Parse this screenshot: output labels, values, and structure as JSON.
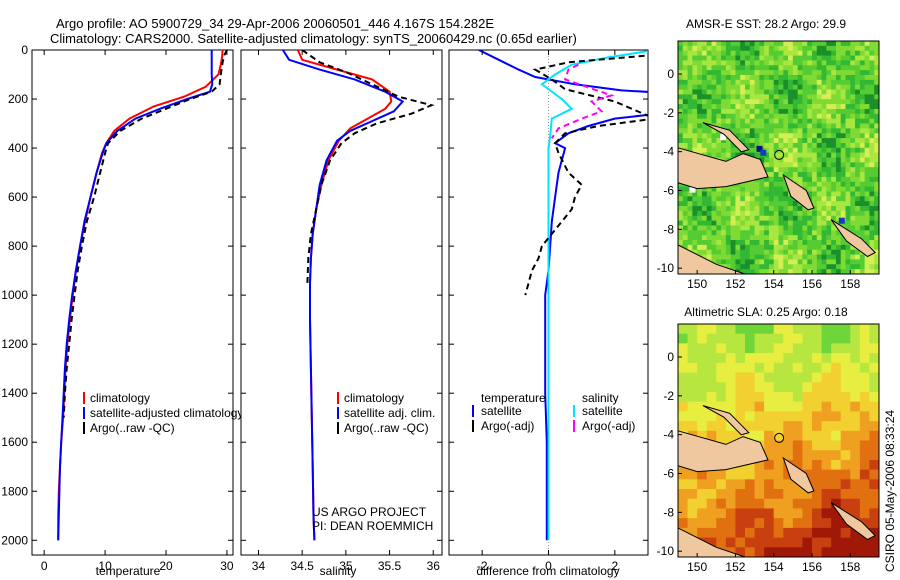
{
  "header": {
    "line1": "Argo profile: AO 5900729_34 29-Apr-2006 20060501_446 4.167S 154.282E",
    "line2": "Climatology: CARS2000. Satellite-adjusted climatology: synTS_20060429.nc (0.65d earlier)"
  },
  "footer": {
    "project": "US ARGO PROJECT",
    "pi": "PI: DEAN ROEMMICH",
    "stamp": "CSIRO 05-May-2006 08:33:24"
  },
  "colors": {
    "climatology": "#ff0000",
    "satellite": "#0000ff",
    "argo": "#000000",
    "sal_satellite": "#00e5ff",
    "sal_argo": "#ff00ff",
    "land": "#f0c8a0"
  },
  "chart_data": [
    {
      "id": "temperature",
      "type": "line",
      "xlabel": "temperature",
      "xlim": [
        -2,
        31
      ],
      "ylim": [
        0,
        2060
      ],
      "xticks": [
        0,
        10,
        20,
        30
      ],
      "yticks": [
        0,
        200,
        400,
        600,
        800,
        1000,
        1200,
        1400,
        1600,
        1800,
        2000
      ],
      "legend": [
        "climatology",
        "satellite-adjusted climatology",
        "Argo(..raw -QC)"
      ],
      "series": [
        {
          "name": "climatology",
          "color": "#ff0000",
          "dash": "",
          "points": [
            [
              29.3,
              0
            ],
            [
              29.2,
              30
            ],
            [
              29.0,
              60
            ],
            [
              28.6,
              100
            ],
            [
              26.5,
              150
            ],
            [
              23,
              190
            ],
            [
              18,
              230
            ],
            [
              14,
              280
            ],
            [
              11.5,
              330
            ],
            [
              10.2,
              380
            ],
            [
              9.5,
              420
            ],
            [
              8.6,
              500
            ],
            [
              7.6,
              600
            ],
            [
              6.7,
              700
            ],
            [
              5.9,
              800
            ],
            [
              5.2,
              900
            ],
            [
              4.7,
              1000
            ],
            [
              4.2,
              1100
            ],
            [
              3.8,
              1200
            ],
            [
              3.5,
              1300
            ],
            [
              3.3,
              1400
            ],
            [
              3.1,
              1500
            ],
            [
              2.8,
              1600
            ],
            [
              2.6,
              1700
            ],
            [
              2.4,
              1800
            ],
            [
              2.3,
              1900
            ],
            [
              2.3,
              2000
            ]
          ]
        },
        {
          "name": "satellite-adjusted climatology",
          "color": "#0000ff",
          "dash": "",
          "points": [
            [
              27.5,
              0
            ],
            [
              27.5,
              40
            ],
            [
              27.5,
              100
            ],
            [
              27.6,
              140
            ],
            [
              27.2,
              170
            ],
            [
              23.5,
              200
            ],
            [
              19,
              240
            ],
            [
              15,
              280
            ],
            [
              12,
              330
            ],
            [
              10.2,
              380
            ],
            [
              9.6,
              420
            ],
            [
              8.6,
              500
            ],
            [
              7.6,
              600
            ],
            [
              6.6,
              700
            ],
            [
              5.9,
              800
            ],
            [
              5.2,
              900
            ],
            [
              4.6,
              1000
            ],
            [
              4.1,
              1100
            ],
            [
              3.7,
              1200
            ],
            [
              3.4,
              1300
            ],
            [
              3.2,
              1400
            ],
            [
              3.0,
              1500
            ],
            [
              2.8,
              1600
            ],
            [
              2.6,
              1700
            ],
            [
              2.5,
              1800
            ],
            [
              2.4,
              1900
            ],
            [
              2.3,
              2000
            ]
          ]
        },
        {
          "name": "Argo(..raw -QC)",
          "color": "#000000",
          "dash": "6,4",
          "points": [
            [
              30.0,
              0
            ],
            [
              29.6,
              20
            ],
            [
              29.3,
              50
            ],
            [
              29.0,
              100
            ],
            [
              28.8,
              140
            ],
            [
              27.5,
              170
            ],
            [
              24,
              200
            ],
            [
              20,
              240
            ],
            [
              16,
              280
            ],
            [
              12.5,
              330
            ],
            [
              10.5,
              380
            ],
            [
              10,
              420
            ],
            [
              9.2,
              500
            ],
            [
              8.2,
              600
            ],
            [
              7.0,
              700
            ],
            [
              6.2,
              800
            ],
            [
              5.5,
              900
            ],
            [
              5.0,
              1000
            ],
            [
              4.5,
              1100
            ],
            [
              4.1,
              1200
            ],
            [
              3.7,
              1300
            ],
            [
              3.4,
              1400
            ],
            [
              3.2,
              1500
            ]
          ]
        }
      ]
    },
    {
      "id": "salinity",
      "type": "line",
      "xlabel": "salinity",
      "xlim": [
        33.8,
        36.1
      ],
      "ylim": [
        0,
        2060
      ],
      "xticks": [
        34,
        34.5,
        35,
        35.5,
        36
      ],
      "legend": [
        "climatology",
        "satellite adj. clim.",
        "Argo(..raw -QC)"
      ],
      "series": [
        {
          "name": "climatology",
          "color": "#ff0000",
          "dash": "",
          "points": [
            [
              34.45,
              0
            ],
            [
              34.5,
              40
            ],
            [
              34.9,
              80
            ],
            [
              35.3,
              120
            ],
            [
              35.5,
              170
            ],
            [
              35.52,
              210
            ],
            [
              35.45,
              240
            ],
            [
              35.25,
              280
            ],
            [
              35.05,
              320
            ],
            [
              34.92,
              370
            ],
            [
              34.8,
              450
            ],
            [
              34.72,
              550
            ],
            [
              34.66,
              650
            ],
            [
              34.62,
              750
            ],
            [
              34.6,
              850
            ],
            [
              34.59,
              950
            ],
            [
              34.59,
              1100
            ],
            [
              34.6,
              1300
            ],
            [
              34.61,
              1500
            ],
            [
              34.62,
              1700
            ],
            [
              34.63,
              1900
            ],
            [
              34.64,
              2000
            ]
          ]
        },
        {
          "name": "satellite adj. clim.",
          "color": "#0000ff",
          "dash": "",
          "points": [
            [
              34.28,
              0
            ],
            [
              34.35,
              40
            ],
            [
              34.7,
              80
            ],
            [
              35.1,
              120
            ],
            [
              35.45,
              170
            ],
            [
              35.65,
              210
            ],
            [
              35.55,
              250
            ],
            [
              35.3,
              290
            ],
            [
              35.05,
              330
            ],
            [
              34.9,
              370
            ],
            [
              34.78,
              450
            ],
            [
              34.7,
              550
            ],
            [
              34.66,
              650
            ],
            [
              34.62,
              750
            ],
            [
              34.6,
              850
            ],
            [
              34.59,
              950
            ],
            [
              34.59,
              1100
            ],
            [
              34.6,
              1300
            ],
            [
              34.61,
              1500
            ],
            [
              34.62,
              1700
            ],
            [
              34.63,
              1900
            ],
            [
              34.64,
              2000
            ]
          ]
        },
        {
          "name": "Argo(..raw -QC)",
          "color": "#000000",
          "dash": "6,4",
          "points": [
            [
              34.5,
              0
            ],
            [
              34.7,
              50
            ],
            [
              35.0,
              90
            ],
            [
              35.3,
              140
            ],
            [
              35.6,
              190
            ],
            [
              35.98,
              225
            ],
            [
              35.75,
              260
            ],
            [
              35.35,
              300
            ],
            [
              35.1,
              340
            ],
            [
              34.95,
              380
            ],
            [
              34.82,
              450
            ],
            [
              34.72,
              550
            ],
            [
              34.66,
              650
            ],
            [
              34.6,
              750
            ],
            [
              34.57,
              850
            ],
            [
              34.56,
              950
            ]
          ]
        }
      ]
    },
    {
      "id": "difference",
      "type": "line",
      "xlabel": "difference from climatology",
      "xlim": [
        -3,
        3
      ],
      "ylim": [
        0,
        2060
      ],
      "xticks": [
        -2,
        0,
        2
      ],
      "legend_titles": [
        "temperature",
        "salinity"
      ],
      "legend_temperature": [
        "satellite",
        "Argo(-adj)"
      ],
      "legend_salinity": [
        "satellite",
        "Argo(-adj)"
      ],
      "series": [
        {
          "name": "temperature satellite",
          "color": "#0000ff",
          "dash": "",
          "points": [
            [
              -2.1,
              0
            ],
            [
              -1.5,
              40
            ],
            [
              -0.9,
              80
            ],
            [
              -0.4,
              110
            ],
            [
              0.8,
              140
            ],
            [
              2.2,
              165
            ],
            [
              3.5,
              175
            ]
          ]
        },
        {
          "name": "temperature satellite lower",
          "color": "#0000ff",
          "dash": "",
          "points": [
            [
              3.3,
              260
            ],
            [
              2.0,
              280
            ],
            [
              1.2,
              310
            ],
            [
              0.6,
              340
            ],
            [
              0.2,
              380
            ],
            [
              0.5,
              400
            ],
            [
              0.4,
              450
            ],
            [
              0.3,
              500
            ],
            [
              0.2,
              600
            ],
            [
              0.1,
              700
            ],
            [
              0.05,
              800
            ],
            [
              0.0,
              900
            ],
            [
              -0.1,
              1000
            ],
            [
              -0.1,
              1200
            ],
            [
              -0.1,
              1400
            ],
            [
              -0.05,
              1600
            ],
            [
              -0.05,
              1800
            ],
            [
              -0.05,
              2000
            ]
          ]
        },
        {
          "name": "salinity satellite",
          "color": "#00e5ff",
          "dash": "",
          "points": [
            [
              3.2,
              0
            ],
            [
              1.8,
              30
            ],
            [
              0.7,
              60
            ],
            [
              0.2,
              100
            ],
            [
              -0.2,
              140
            ],
            [
              0.4,
              200
            ],
            [
              0.7,
              240
            ],
            [
              0.1,
              280
            ],
            [
              0.05,
              350
            ],
            [
              0.0,
              400
            ],
            [
              0.0,
              500
            ],
            [
              0.0,
              600
            ],
            [
              0.0,
              800
            ],
            [
              0.0,
              1000
            ],
            [
              0.0,
              1200
            ],
            [
              0.0,
              1400
            ],
            [
              0.0,
              1600
            ],
            [
              0.0,
              1800
            ],
            [
              0.0,
              2000
            ]
          ]
        },
        {
          "name": "temperature Argo(-adj)",
          "color": "#000000",
          "dash": "6,4",
          "points": [
            [
              3.2,
              20
            ],
            [
              0.6,
              50
            ],
            [
              -0.4,
              80
            ],
            [
              0.1,
              120
            ],
            [
              0.5,
              160
            ],
            [
              2.0,
              210
            ],
            [
              3.2,
              280
            ],
            [
              1.5,
              310
            ],
            [
              0.5,
              340
            ],
            [
              0.2,
              380
            ],
            [
              0.3,
              420
            ],
            [
              0.6,
              500
            ],
            [
              1.0,
              550
            ],
            [
              0.8,
              600
            ],
            [
              0.7,
              650
            ],
            [
              0.4,
              700
            ],
            [
              0.1,
              750
            ],
            [
              -0.2,
              800
            ],
            [
              -0.3,
              850
            ],
            [
              -0.5,
              900
            ],
            [
              -0.6,
              950
            ],
            [
              -0.7,
              1000
            ]
          ]
        },
        {
          "name": "salinity Argo(-adj)",
          "color": "#ff00ff",
          "dash": "6,4",
          "points": [
            [
              0.9,
              60
            ],
            [
              0.6,
              80
            ],
            [
              0.5,
              120
            ],
            [
              1.9,
              185
            ],
            [
              1.3,
              210
            ],
            [
              1.6,
              250
            ],
            [
              1.0,
              280
            ],
            [
              0.3,
              320
            ],
            [
              0.1,
              360
            ]
          ]
        }
      ]
    },
    {
      "id": "sst-map",
      "type": "heatmap",
      "title": "AMSR-E SST: 28.2 Argo: 29.9",
      "xlim": [
        149,
        159.5
      ],
      "ylim": [
        -10.3,
        1.7
      ],
      "xticks": [
        150,
        152,
        154,
        156,
        158
      ],
      "yticks": [
        0,
        -2,
        -4,
        -6,
        -8,
        -10
      ],
      "marker": [
        154.282,
        -4.167
      ],
      "palette": [
        "#1a8f2a",
        "#33b833",
        "#55cc33",
        "#7fdb33",
        "#a8e640",
        "#d4ee55"
      ]
    },
    {
      "id": "sla-map",
      "type": "heatmap",
      "title": "Altimetric SLA: 0.25 Argo: 0.18",
      "xlim": [
        149,
        159.5
      ],
      "ylim": [
        -10.3,
        1.7
      ],
      "xticks": [
        150,
        152,
        154,
        156,
        158
      ],
      "yticks": [
        0,
        -2,
        -4,
        -6,
        -8,
        -10
      ],
      "marker": [
        154.282,
        -4.167
      ],
      "palette": [
        "#6fd63a",
        "#b8e640",
        "#e8ee40",
        "#f2d030",
        "#f0a020",
        "#e07010",
        "#c84010",
        "#a01808"
      ]
    }
  ]
}
